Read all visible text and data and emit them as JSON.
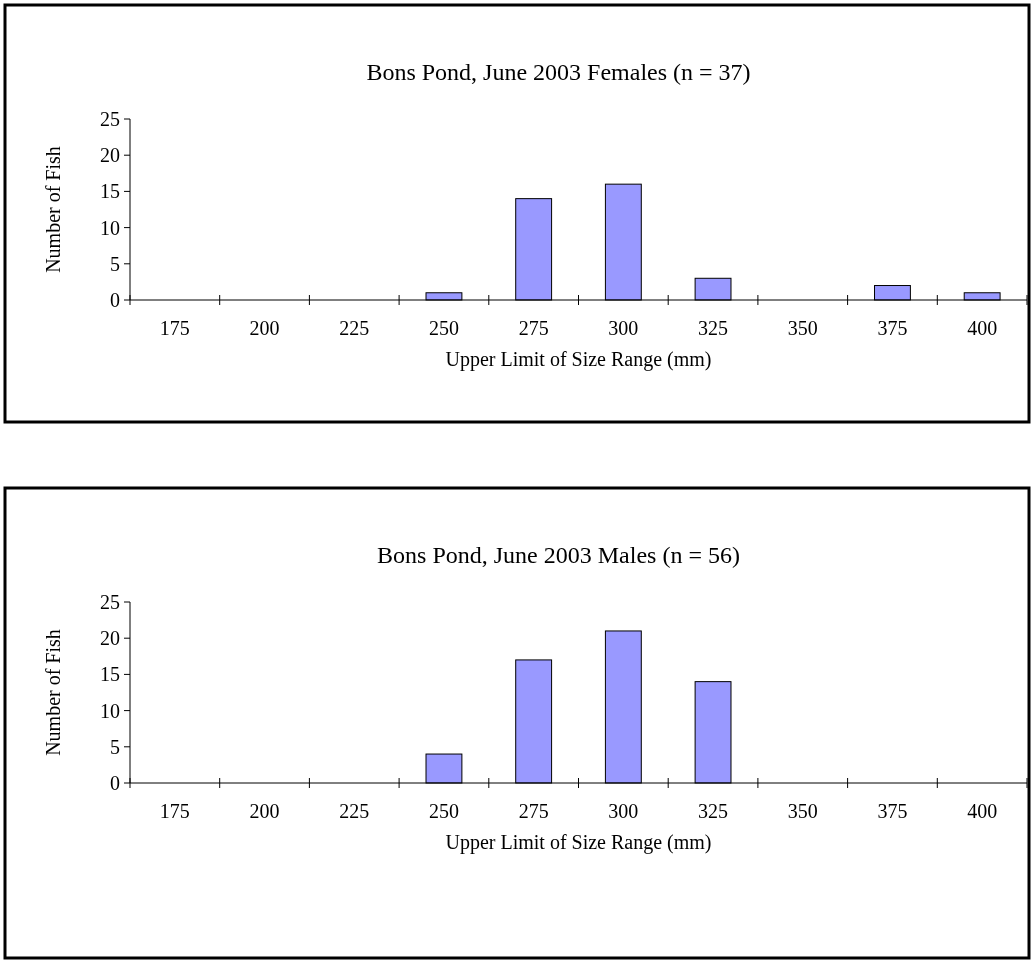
{
  "chart_data": [
    {
      "type": "bar",
      "title": "Bons Pond, June 2003 Females (n = 37)",
      "xlabel": "Upper Limit of Size Range (mm)",
      "ylabel": "Number of Fish",
      "categories": [
        "175",
        "200",
        "225",
        "250",
        "275",
        "300",
        "325",
        "350",
        "375",
        "400"
      ],
      "values": [
        0,
        0,
        0,
        1,
        14,
        16,
        3,
        0,
        2,
        1
      ],
      "color": "#9999ff",
      "ylim": [
        0,
        25
      ],
      "yticks": [
        0,
        5,
        10,
        15,
        20,
        25
      ],
      "grid": false
    },
    {
      "type": "bar",
      "title": "Bons Pond, June 2003 Males (n = 56)",
      "xlabel": "Upper Limit of Size Range (mm)",
      "ylabel": "Number of Fish",
      "categories": [
        "175",
        "200",
        "225",
        "250",
        "275",
        "300",
        "325",
        "350",
        "375",
        "400"
      ],
      "values": [
        0,
        0,
        0,
        4,
        17,
        21,
        14,
        0,
        0,
        0
      ],
      "color": "#9999ff",
      "ylim": [
        0,
        25
      ],
      "yticks": [
        0,
        5,
        10,
        15,
        20,
        25
      ],
      "grid": false
    }
  ]
}
